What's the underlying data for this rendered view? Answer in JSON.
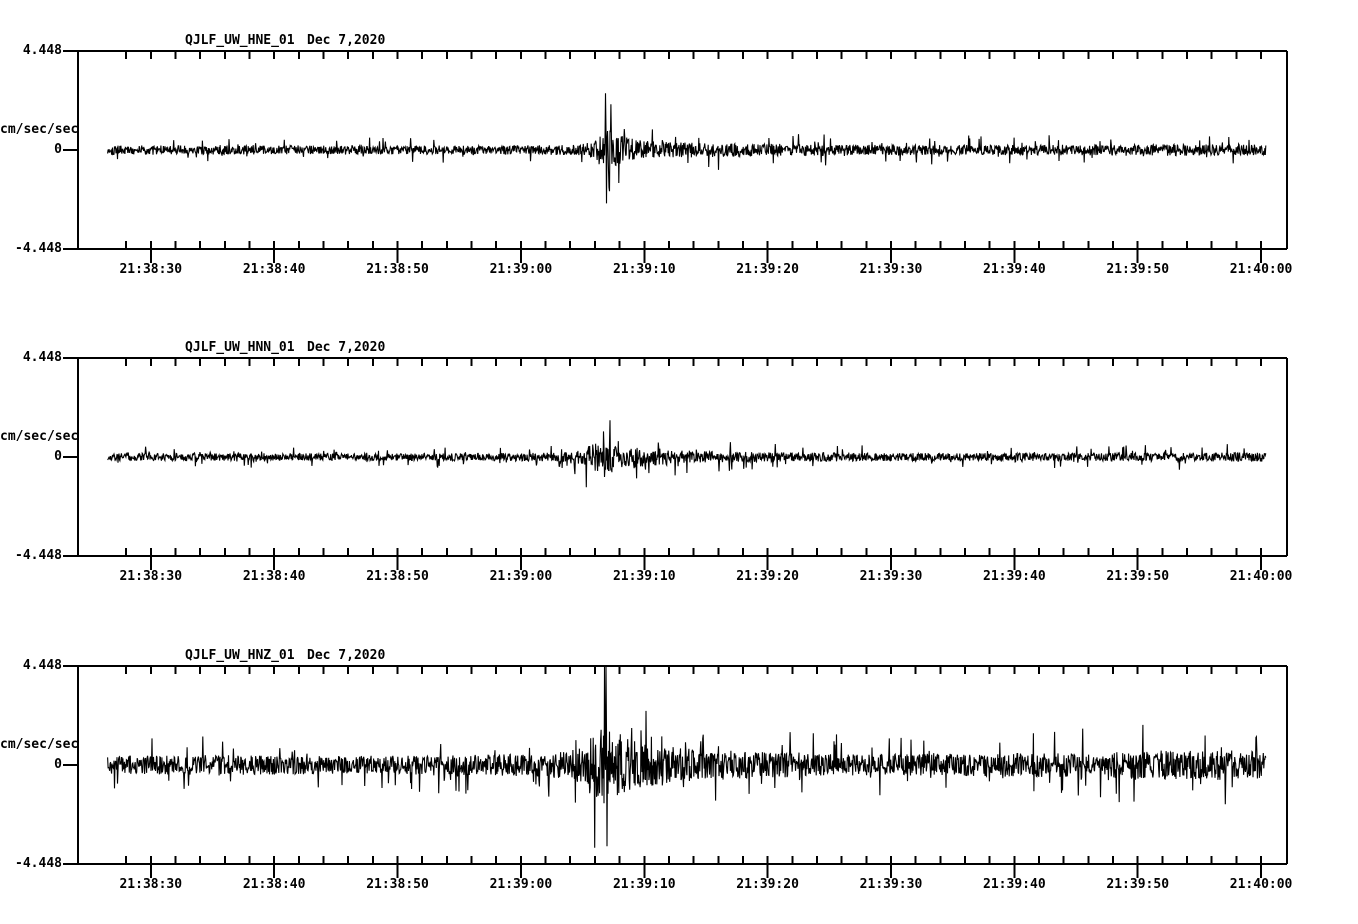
{
  "page": {
    "background": "#ffffff",
    "ink": "#000000"
  },
  "chart_data": {
    "type": "line",
    "variant": "seismogram-three-component",
    "time_axis": {
      "reference": "21:38:00",
      "window_sec": [
        24.1,
        122.1
      ],
      "tick_seconds": [
        30,
        40,
        50,
        60,
        70,
        80,
        90,
        100,
        110,
        120
      ],
      "tick_labels": [
        "21:38:30",
        "21:38:40",
        "21:38:50",
        "21:39:00",
        "21:39:10",
        "21:39:20",
        "21:39:30",
        "21:39:40",
        "21:39:50",
        "21:40:00"
      ],
      "minor_tick_sec": 2
    },
    "amplitude_axis": {
      "unit": "cm/sec/sec",
      "ylim": [
        -4.448,
        4.448
      ],
      "tick_labels": [
        "4.448",
        "0",
        "-4.448"
      ]
    },
    "panels": [
      {
        "title": "QJLF_UW_HNE_01",
        "date": "Dec 7,2020",
        "seed": 101,
        "trace_window_sec": [
          26.5,
          120.4
        ],
        "event_time_sec": 66.9,
        "peak_amplitude": 2.55,
        "envelope": [
          [
            26.5,
            0.3
          ],
          [
            45,
            0.27
          ],
          [
            60,
            0.28
          ],
          [
            64,
            0.33
          ],
          [
            65.8,
            0.5
          ],
          [
            66.6,
            1.2
          ],
          [
            67.2,
            1.35
          ],
          [
            68,
            0.95
          ],
          [
            69.5,
            0.65
          ],
          [
            71,
            0.52
          ],
          [
            74,
            0.46
          ],
          [
            78,
            0.4
          ],
          [
            85,
            0.34
          ],
          [
            95,
            0.31
          ],
          [
            105,
            0.33
          ],
          [
            112,
            0.36
          ],
          [
            120.4,
            0.33
          ]
        ],
        "spikes": [
          {
            "t": 66.85,
            "up": 2.55,
            "down": -2.4
          }
        ]
      },
      {
        "title": "QJLF_UW_HNN_01",
        "date": "Dec 7,2020",
        "seed": 202,
        "trace_window_sec": [
          26.5,
          120.4
        ],
        "event_time_sec": 66.9,
        "peak_amplitude": 1.15,
        "envelope": [
          [
            26.5,
            0.24
          ],
          [
            50,
            0.22
          ],
          [
            62,
            0.27
          ],
          [
            64.5,
            0.42
          ],
          [
            66,
            0.85
          ],
          [
            66.9,
            1.15
          ],
          [
            67.8,
            1.0
          ],
          [
            69,
            0.75
          ],
          [
            70.5,
            0.58
          ],
          [
            72.5,
            0.46
          ],
          [
            75,
            0.36
          ],
          [
            80,
            0.29
          ],
          [
            90,
            0.25
          ],
          [
            100,
            0.24
          ],
          [
            110,
            0.27
          ],
          [
            120.4,
            0.28
          ]
        ],
        "spikes": [
          {
            "t": 66.7,
            "up": 1.15,
            "down": -0.9
          }
        ]
      },
      {
        "title": "QJLF_UW_HNZ_01",
        "date": "Dec 7,2020",
        "seed": 303,
        "trace_window_sec": [
          26.5,
          120.4
        ],
        "event_time_sec": 66.9,
        "peak_amplitude": 4.42,
        "envelope": [
          [
            26.5,
            0.55
          ],
          [
            35,
            0.62
          ],
          [
            45,
            0.56
          ],
          [
            55,
            0.62
          ],
          [
            62,
            0.72
          ],
          [
            64.5,
            1.0
          ],
          [
            66,
            2.1
          ],
          [
            66.9,
            3.0
          ],
          [
            67.6,
            2.4
          ],
          [
            68.5,
            1.9
          ],
          [
            70,
            1.45
          ],
          [
            72,
            1.1
          ],
          [
            75,
            0.95
          ],
          [
            80,
            0.8
          ],
          [
            85,
            0.7
          ],
          [
            90,
            0.68
          ],
          [
            95,
            0.7
          ],
          [
            100,
            0.73
          ],
          [
            105,
            0.78
          ],
          [
            110,
            0.86
          ],
          [
            115,
            0.96
          ],
          [
            120.4,
            0.9
          ]
        ],
        "spikes": [
          {
            "t": 66.9,
            "up": 4.42,
            "down": -3.65
          }
        ]
      }
    ]
  }
}
